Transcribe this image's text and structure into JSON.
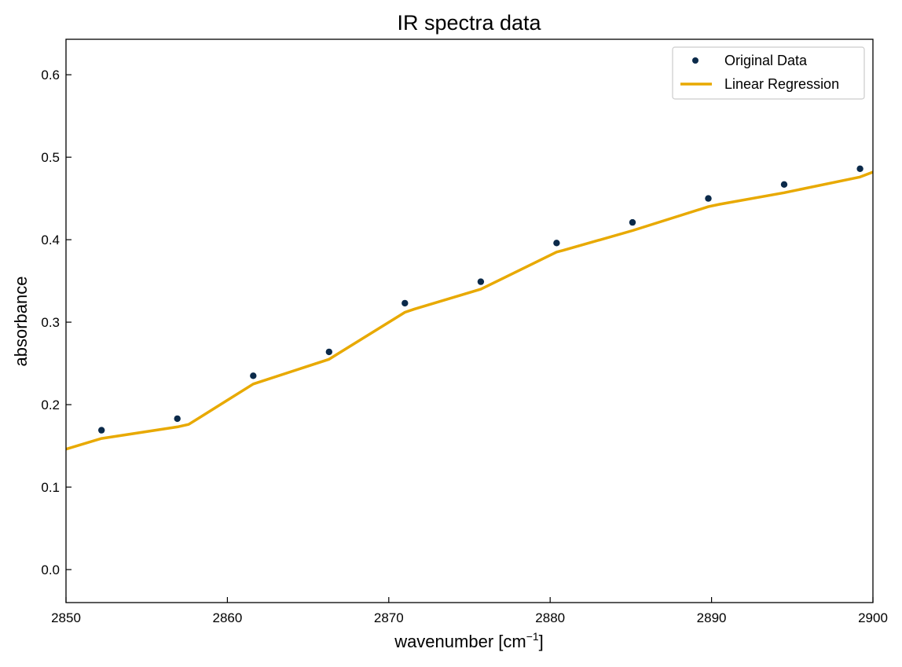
{
  "chart_data": {
    "type": "scatter",
    "title": "IR spectra data",
    "xlabel": "wavenumber [cm",
    "xlabel_sup": "−1",
    "xlabel_suffix": "]",
    "ylabel": "absorbance",
    "xlim": [
      2850,
      2900
    ],
    "ylim": [
      -0.04,
      0.643
    ],
    "xticks": [
      2850,
      2860,
      2870,
      2880,
      2890,
      2900
    ],
    "yticks": [
      0.0,
      0.1,
      0.2,
      0.3,
      0.4,
      0.5,
      0.6
    ],
    "grid": false,
    "legend_position": "top-right",
    "series": [
      {
        "name": "Original Data",
        "kind": "scatter",
        "color": "#0b2a4a",
        "x": [
          2852.2,
          2856.9,
          2861.6,
          2866.3,
          2871.0,
          2875.7,
          2880.4,
          2885.1,
          2889.8,
          2894.5,
          2899.2
        ],
        "y": [
          0.169,
          0.183,
          0.235,
          0.264,
          0.323,
          0.349,
          0.396,
          0.421,
          0.45,
          0.467,
          0.486
        ]
      },
      {
        "name": "Linear Regression",
        "kind": "line",
        "color": "#e8a900",
        "x": [
          2850.0,
          2852.2,
          2856.9,
          2857.6,
          2861.6,
          2866.3,
          2871.0,
          2871.6,
          2875.7,
          2880.4,
          2880.8,
          2885.1,
          2889.8,
          2890.5,
          2894.5,
          2899.2,
          2900.0
        ],
        "y": [
          0.146,
          0.159,
          0.173,
          0.176,
          0.225,
          0.255,
          0.312,
          0.316,
          0.34,
          0.385,
          0.387,
          0.411,
          0.44,
          0.443,
          0.457,
          0.476,
          0.482
        ]
      }
    ]
  }
}
